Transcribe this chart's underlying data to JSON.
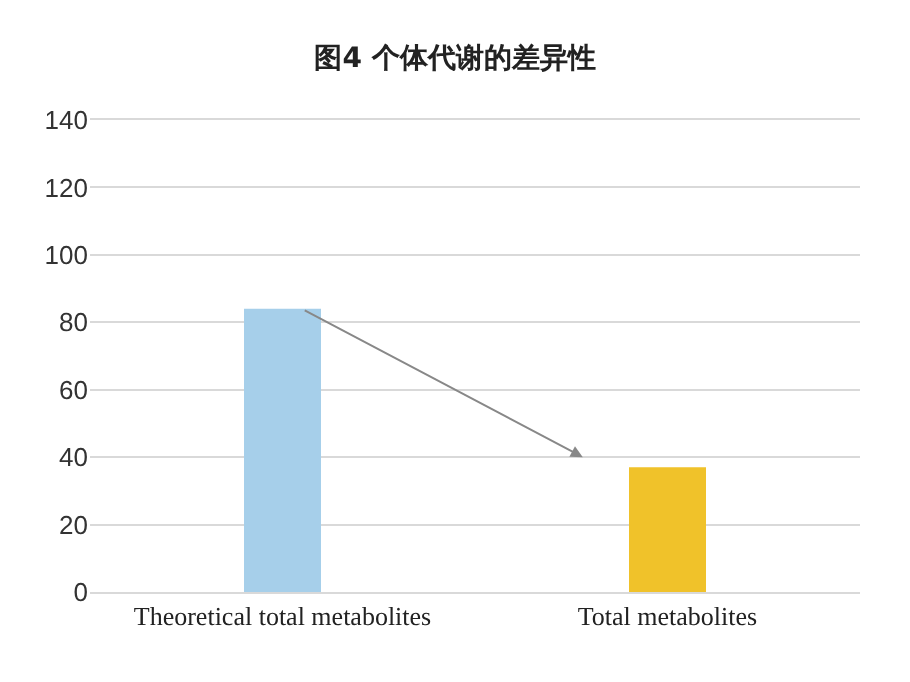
{
  "chart_data": {
    "type": "bar",
    "title": "图4 个体代谢的差异性",
    "categories": [
      "Theoretical total metabolites",
      "Total metabolites"
    ],
    "values": [
      84,
      37
    ],
    "colors": [
      "#a6cfea",
      "#f0c22a"
    ],
    "ylim": [
      0,
      140
    ],
    "yticks": [
      0,
      20,
      40,
      60,
      80,
      100,
      120,
      140
    ],
    "grid": "y"
  }
}
